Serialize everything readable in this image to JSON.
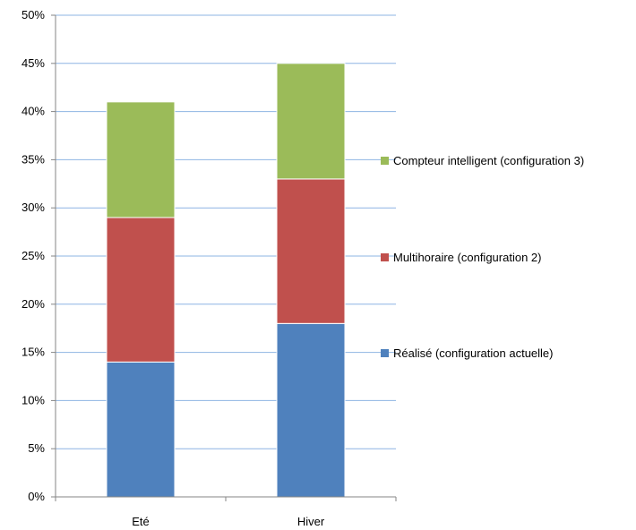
{
  "chart_data": {
    "type": "bar",
    "stacked": true,
    "categories": [
      "Eté",
      "Hiver"
    ],
    "series": [
      {
        "name": "Réalisé (configuration actuelle)",
        "values": [
          14,
          18
        ],
        "color": "#4f81bd"
      },
      {
        "name": "Multihoraire (configuration 2)",
        "values": [
          15,
          15
        ],
        "color": "#c0504d"
      },
      {
        "name": "Compteur intelligent (configuration 3)",
        "values": [
          12,
          12
        ],
        "color": "#9bbb59"
      }
    ],
    "ylim": [
      0,
      50
    ],
    "ytick_step": 5,
    "ytick_labels": [
      "0%",
      "5%",
      "10%",
      "15%",
      "20%",
      "25%",
      "30%",
      "35%",
      "40%",
      "45%",
      "50%"
    ],
    "grid": true,
    "legend_position": "right",
    "title": "",
    "xlabel": "",
    "ylabel": ""
  }
}
